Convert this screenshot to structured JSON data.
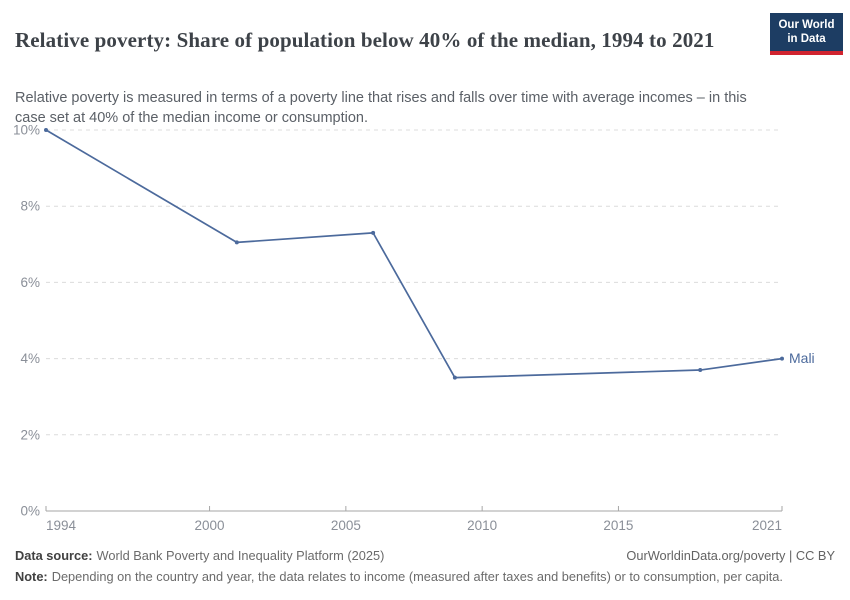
{
  "header": {
    "title": "Relative poverty: Share of population below 40% of the median, 1994 to 2021",
    "subtitle": "Relative poverty is measured in terms of a poverty line that rises and falls over time with average incomes – in this case set at 40% of the median income or consumption.",
    "logo": {
      "line1": "Our World",
      "line2": "in Data",
      "bg_color": "#1d3d63",
      "accent_color": "#d1242f"
    }
  },
  "chart_data": {
    "type": "line",
    "title": "Relative poverty: Share of population below 40% of the median, 1994 to 2021",
    "subtitle": "Relative poverty is measured in terms of a poverty line that rises and falls over time with average incomes – in this case set at 40% of the median income or consumption.",
    "xlabel": "",
    "ylabel": "",
    "xlim": [
      1994,
      2021
    ],
    "ylim": [
      0,
      10
    ],
    "x_ticks": [
      1994,
      2000,
      2005,
      2010,
      2015,
      2021
    ],
    "y_ticks": [
      {
        "value": 0,
        "label": "0%"
      },
      {
        "value": 2,
        "label": "2%"
      },
      {
        "value": 4,
        "label": "4%"
      },
      {
        "value": 6,
        "label": "6%"
      },
      {
        "value": 8,
        "label": "8%"
      },
      {
        "value": 10,
        "label": "10%"
      }
    ],
    "grid": "horizontal-dashed",
    "legend_position": "end-of-line",
    "series": [
      {
        "name": "Mali",
        "color": "#4c6a9c",
        "points": [
          {
            "x": 1994,
            "y": 10.0
          },
          {
            "x": 2001,
            "y": 7.05
          },
          {
            "x": 2006,
            "y": 7.3
          },
          {
            "x": 2009,
            "y": 3.5
          },
          {
            "x": 2018,
            "y": 3.7
          },
          {
            "x": 2021,
            "y": 4.0
          }
        ]
      }
    ]
  },
  "footer": {
    "data_source_label": "Data source:",
    "data_source_text": "World Bank Poverty and Inequality Platform (2025)",
    "credit": "OurWorldinData.org/poverty | CC BY",
    "note_label": "Note:",
    "note_text": "Depending on the country and year, the data relates to income (measured after taxes and benefits) or to consumption, per capita."
  }
}
